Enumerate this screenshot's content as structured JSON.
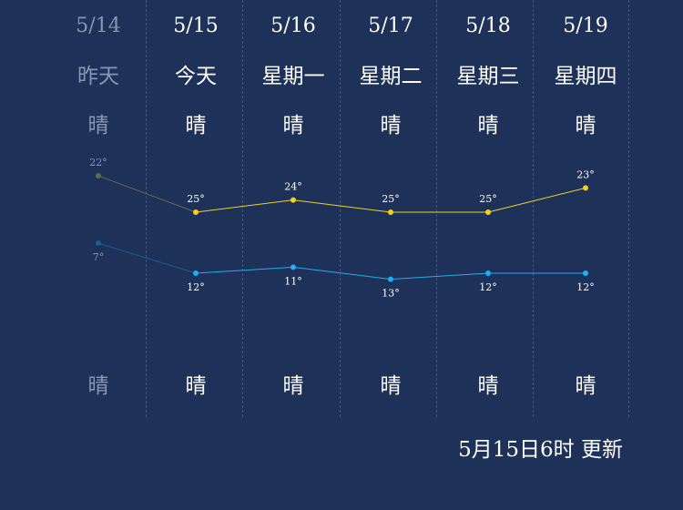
{
  "days": [
    {
      "date": "5/14",
      "day": "昨天",
      "cond_day": "晴",
      "cond_night": "晴",
      "high": 22,
      "low": 7,
      "past": true
    },
    {
      "date": "5/15",
      "day": "今天",
      "cond_day": "晴",
      "cond_night": "晴",
      "high": 25,
      "low": 12,
      "past": false
    },
    {
      "date": "5/16",
      "day": "星期一",
      "cond_day": "晴",
      "cond_night": "晴",
      "high": 24,
      "low": 11,
      "past": false
    },
    {
      "date": "5/17",
      "day": "星期二",
      "cond_day": "晴",
      "cond_night": "晴",
      "high": 25,
      "low": 13,
      "past": false
    },
    {
      "date": "5/18",
      "day": "星期三",
      "cond_day": "晴",
      "cond_night": "晴",
      "high": 25,
      "low": 12,
      "past": false
    },
    {
      "date": "5/19",
      "day": "星期四",
      "cond_day": "晴",
      "cond_night": "晴",
      "high": 23,
      "low": 12,
      "past": false
    }
  ],
  "temp_unit": "°",
  "updated_text": "5月15日6时 更新",
  "colors": {
    "background": "#1e3158",
    "high_line": "#f2d21e",
    "low_line": "#1fb0f0",
    "past_text": "#8798b4",
    "past_high_line": "#636b4c",
    "past_low_line": "#1c5a90",
    "label": "#ffffff"
  },
  "chart_data": {
    "type": "line",
    "categories": [
      "5/14",
      "5/15",
      "5/16",
      "5/17",
      "5/18",
      "5/19"
    ],
    "series": [
      {
        "values": [
          22,
          25,
          24,
          25,
          25,
          23
        ]
      },
      {
        "values": [
          7,
          12,
          11,
          13,
          12,
          12
        ]
      }
    ]
  }
}
